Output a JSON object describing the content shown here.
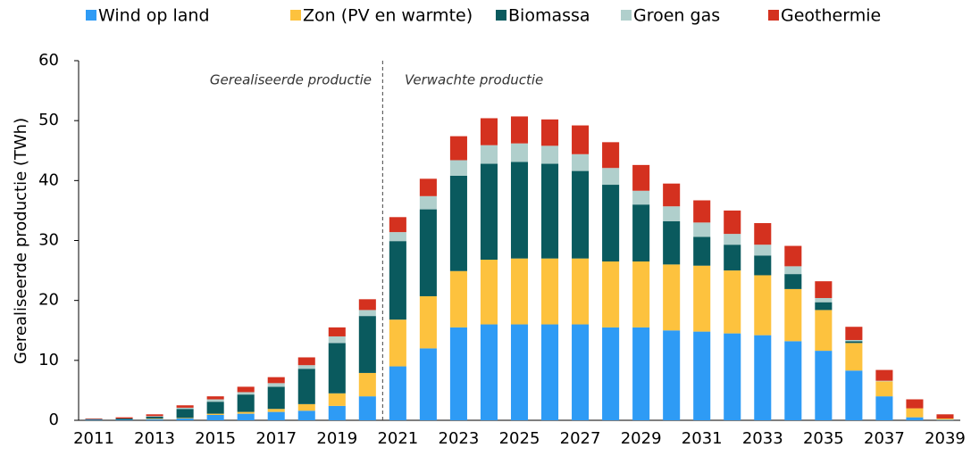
{
  "chart_data": {
    "type": "stacked_bar",
    "y_label": "Gerealiseerde productie (TWh)",
    "annotations": [
      "Gerealiseerde productie",
      "Verwachte productie"
    ],
    "categories": [
      "2011",
      null,
      "2013",
      null,
      "2015",
      null,
      "2017",
      null,
      "2019",
      null,
      "2021",
      null,
      "2023",
      null,
      "2025",
      null,
      "2027",
      null,
      "2029",
      null,
      "2031",
      null,
      "2033",
      null,
      "2035",
      null,
      "2037",
      null,
      "2039"
    ],
    "series": [
      {
        "name": "Wind op land",
        "color": "#2e9bf5",
        "values": [
          0.1,
          0.1,
          0.2,
          0.3,
          0.9,
          1.1,
          1.4,
          1.6,
          2.4,
          4.0,
          9.0,
          12.0,
          15.5,
          16.0,
          16.0,
          16.0,
          16.0,
          15.5,
          15.5,
          15.0,
          14.8,
          14.5,
          14.2,
          13.2,
          11.6,
          8.3,
          4.0,
          0.5,
          0.1
        ]
      },
      {
        "name": "Zon (PV en warmte)",
        "color": "#fdc23e",
        "values": [
          0,
          0,
          0.1,
          0.1,
          0.2,
          0.3,
          0.5,
          1.1,
          2.1,
          3.9,
          7.8,
          8.7,
          9.4,
          10.8,
          11.0,
          11.0,
          11.0,
          11.0,
          11.0,
          11.0,
          11.0,
          10.5,
          10.0,
          8.7,
          6.8,
          4.6,
          2.5,
          1.5,
          0.2
        ]
      },
      {
        "name": "Biomassa",
        "color": "#0a5a5e",
        "values": [
          0.1,
          0.2,
          0.3,
          1.5,
          2.0,
          2.9,
          3.7,
          5.9,
          8.4,
          9.5,
          13.1,
          14.5,
          15.9,
          16.0,
          16.1,
          15.8,
          14.6,
          12.8,
          9.5,
          7.2,
          4.8,
          4.3,
          3.3,
          2.5,
          1.3,
          0.3,
          0,
          0,
          0
        ]
      },
      {
        "name": "Groen gas",
        "color": "#b0cfcc",
        "values": [
          0,
          0,
          0.1,
          0.2,
          0.4,
          0.4,
          0.6,
          0.6,
          1.1,
          1.0,
          1.5,
          2.2,
          2.6,
          3.1,
          3.1,
          3.0,
          2.8,
          2.8,
          2.3,
          2.5,
          2.4,
          1.8,
          1.8,
          1.3,
          0.7,
          0.2,
          0.1,
          0,
          0
        ]
      },
      {
        "name": "Geothermie",
        "color": "#d4311f",
        "values": [
          0.1,
          0.2,
          0.3,
          0.4,
          0.5,
          0.9,
          1.0,
          1.3,
          1.5,
          1.8,
          2.5,
          2.9,
          4.0,
          4.5,
          4.5,
          4.4,
          4.8,
          4.3,
          4.3,
          3.8,
          3.7,
          3.9,
          3.6,
          3.4,
          2.8,
          2.2,
          1.8,
          1.5,
          0.7
        ]
      }
    ],
    "ylim": [
      0,
      60
    ],
    "yticks": [
      0,
      10,
      20,
      30,
      40,
      50,
      60
    ],
    "legend": "top"
  }
}
